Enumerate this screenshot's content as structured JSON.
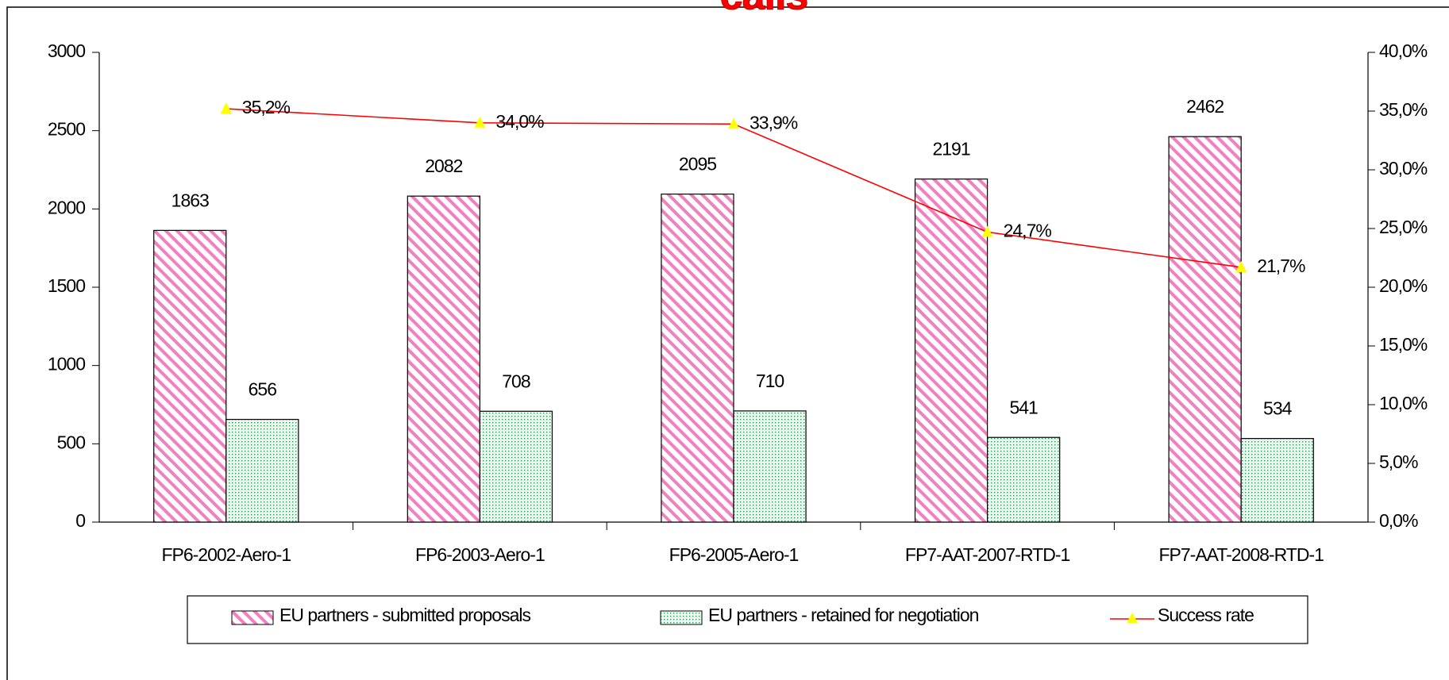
{
  "chart_data": {
    "type": "bar",
    "title": "calls",
    "categories": [
      "FP6-2002-Aero-1",
      "FP6-2003-Aero-1",
      "FP6-2005-Aero-1",
      "FP7-AAT-2007-RTD-1",
      "FP7-AAT-2008-RTD-1"
    ],
    "series": [
      {
        "name": "EU partners - submitted proposals",
        "color": "#f060b0",
        "values": [
          1863,
          2082,
          2095,
          2191,
          2462
        ]
      },
      {
        "name": "EU partners - retained for negotiation",
        "color": "#339966",
        "values": [
          656,
          708,
          710,
          541,
          534
        ]
      },
      {
        "name": "Success rate",
        "color": "#ff0000",
        "marker_color": "#ffff00",
        "axis": "y2",
        "values": [
          35.2,
          34.0,
          33.9,
          24.7,
          21.7
        ],
        "value_labels": [
          "35,2%",
          "34,0%",
          "33,9%",
          "24,7%",
          "21,7%"
        ]
      }
    ],
    "ylim": [
      0,
      3000
    ],
    "yticks": [
      0,
      500,
      1000,
      1500,
      2000,
      2500,
      3000
    ],
    "y2lim": [
      0,
      40
    ],
    "y2ticks": [
      {
        "value": 0,
        "label": "0,0%"
      },
      {
        "value": 5,
        "label": "5,0%"
      },
      {
        "value": 10,
        "label": "10,0%"
      },
      {
        "value": 15,
        "label": "15,0%"
      },
      {
        "value": 20,
        "label": "20,0%"
      },
      {
        "value": 25,
        "label": "25,0%"
      },
      {
        "value": 30,
        "label": "30,0%"
      },
      {
        "value": 35,
        "label": "35,0%"
      },
      {
        "value": 40,
        "label": "40,0%"
      }
    ],
    "legend": "bottom",
    "grid": false
  }
}
